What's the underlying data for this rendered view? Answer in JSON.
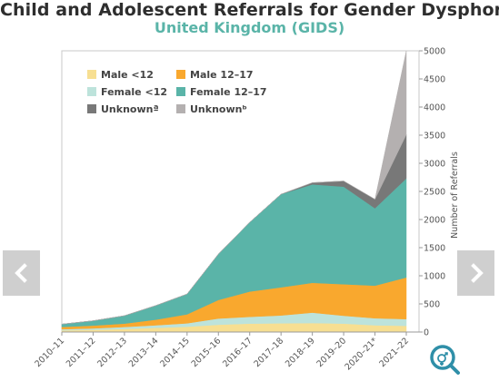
{
  "title": "Child and Adolescent Referrals for Gender Dysphoria",
  "subtitle": "United Kingdom (GIDS)",
  "nav": {
    "prev_icon": "chevron-left-icon",
    "next_icon": "chevron-right-icon"
  },
  "logo_icon": "gender-symbol-magnifier-icon",
  "chart_data": {
    "type": "area",
    "stacked": true,
    "categories": [
      "2010–11",
      "2011–12",
      "2012–13",
      "2013–14",
      "2014–15",
      "2015–16",
      "2016–17",
      "2017–18",
      "2018–19",
      "2019–20",
      "2020–21*",
      "2021–22"
    ],
    "ylabel": "Number of Referrals",
    "ylim": [
      0,
      5000
    ],
    "yticks": [
      0,
      500,
      1000,
      1500,
      2000,
      2500,
      3000,
      3500,
      4000,
      4500,
      5000
    ],
    "y_axis_side": "right",
    "grid": false,
    "legend_position": "top-left",
    "series": [
      {
        "name": "Male <12",
        "color": "#f7df92",
        "values": [
          30,
          40,
          55,
          75,
          95,
          130,
          150,
          155,
          160,
          150,
          120,
          110
        ]
      },
      {
        "name": "Female <12",
        "color": "#bde3db",
        "values": [
          20,
          25,
          35,
          45,
          60,
          110,
          120,
          140,
          185,
          140,
          125,
          120
        ]
      },
      {
        "name": "Male 12–17",
        "color": "#f9a82e",
        "values": [
          40,
          50,
          60,
          100,
          160,
          330,
          450,
          500,
          530,
          560,
          580,
          740
        ]
      },
      {
        "name": "Female 12–17",
        "color": "#5ab4a8",
        "values": [
          50,
          85,
          140,
          250,
          360,
          815,
          1230,
          1655,
          1750,
          1735,
          1375,
          1760
        ]
      },
      {
        "name": "Unknownª",
        "color": "#787878",
        "values": [
          0,
          0,
          0,
          0,
          0,
          0,
          0,
          0,
          30,
          100,
          160,
          780
        ]
      },
      {
        "name": "Unknownᵇ",
        "color": "#b4b0b0",
        "values": [
          0,
          0,
          0,
          0,
          0,
          0,
          0,
          0,
          0,
          0,
          0,
          1490
        ]
      }
    ],
    "legend_order": [
      "Male <12",
      "Male 12–17",
      "Female <12",
      "Female 12–17",
      "Unknownª",
      "Unknownᵇ"
    ]
  }
}
